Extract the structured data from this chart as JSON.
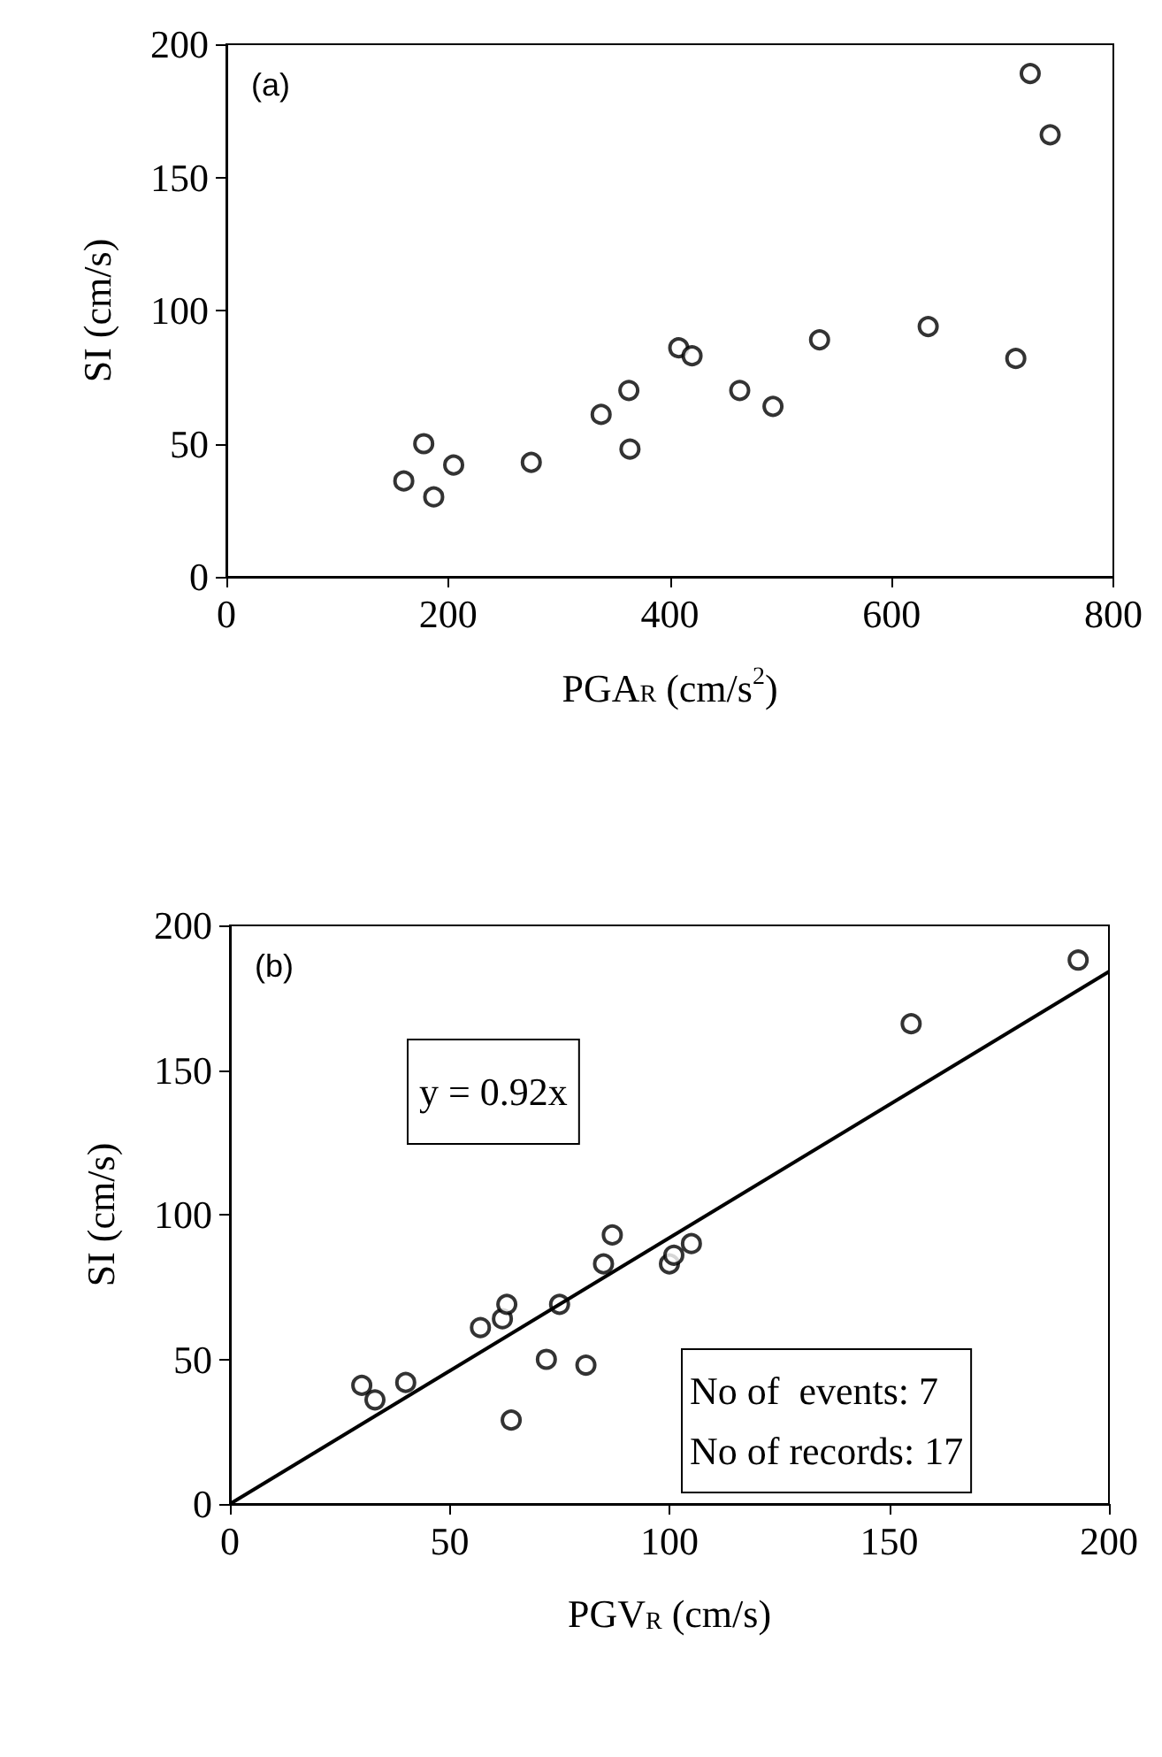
{
  "chart_data": [
    {
      "type": "scatter",
      "xlabel": "PGA$_{R}$ (cm/s$^{2}$)",
      "ylabel": "SI (cm/s)",
      "annotations": [
        "(a)"
      ],
      "xlim": [
        0,
        800
      ],
      "xticks": [
        0,
        200,
        400,
        600,
        800
      ],
      "ylim": [
        0,
        200
      ],
      "yticks": [
        0,
        50,
        100,
        150,
        200
      ],
      "grid": false,
      "marker": "circle",
      "series": [
        {
          "color": "#000000",
          "x": [
            160,
            178,
            187,
            205,
            275,
            338,
            363,
            364,
            408,
            420,
            463,
            493,
            535,
            633,
            712,
            725,
            743
          ],
          "values": [
            36,
            50,
            30,
            42,
            43,
            61,
            70,
            48,
            86,
            83,
            70,
            64,
            89,
            94,
            82,
            189,
            166
          ]
        }
      ]
    },
    {
      "type": "scatter",
      "xlabel": "PGV$_{R}$ (cm/s)",
      "ylabel": "SI (cm/s)",
      "annotations": [
        "(b)",
        "y = 0.92x",
        "No of  events: 7",
        "No of records: 17"
      ],
      "xlim": [
        0,
        200
      ],
      "xticks": [
        0,
        50,
        100,
        150,
        200
      ],
      "ylim": [
        0,
        200
      ],
      "yticks": [
        0,
        50,
        100,
        150,
        200
      ],
      "grid": false,
      "marker": "circle",
      "series": [
        {
          "color": "#000000",
          "x": [
            30,
            33,
            40,
            57,
            62,
            63,
            64,
            72,
            75,
            81,
            85,
            87,
            100,
            101,
            105,
            155,
            193
          ],
          "values": [
            41,
            36,
            42,
            61,
            64,
            69,
            29,
            50,
            69,
            48,
            83,
            93,
            83,
            86,
            90,
            166,
            188
          ]
        },
        {
          "type": "line",
          "color": "#000000",
          "marker": "none",
          "line_style": "solid",
          "x": [
            0,
            200
          ],
          "values": [
            0,
            184
          ]
        }
      ]
    }
  ]
}
